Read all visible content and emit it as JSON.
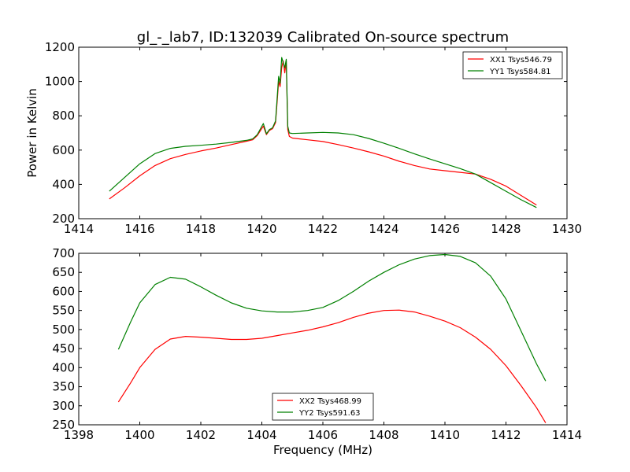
{
  "figure": {
    "title": "gl_-_lab7, ID:132039 Calibrated On-source spectrum",
    "colors": {
      "red": "#ff0000",
      "green": "#008000"
    }
  },
  "chart_data": [
    {
      "type": "line",
      "ylabel": "Power in Kelvin",
      "xlabel": "",
      "xlim": [
        1414,
        1430
      ],
      "ylim": [
        200,
        1200
      ],
      "xticks": [
        1414,
        1416,
        1418,
        1420,
        1422,
        1424,
        1426,
        1428,
        1430
      ],
      "yticks": [
        200,
        400,
        600,
        800,
        1000,
        1200
      ],
      "legend": "top-right",
      "series": [
        {
          "name": "XX1 Tsys546.79",
          "color": "#ff0000",
          "x": [
            1415,
            1415.5,
            1416,
            1416.5,
            1417,
            1417.5,
            1418,
            1418.5,
            1419,
            1419.5,
            1419.7,
            1419.85,
            1420.05,
            1420.15,
            1420.25,
            1420.35,
            1420.45,
            1420.5,
            1420.55,
            1420.6,
            1420.65,
            1420.7,
            1420.75,
            1420.8,
            1420.85,
            1420.9,
            1421,
            1421.5,
            1422,
            1422.5,
            1423,
            1423.5,
            1424,
            1424.5,
            1425,
            1425.5,
            1426,
            1426.5,
            1427,
            1427.5,
            1428,
            1428.5,
            1429
          ],
          "values": [
            315,
            380,
            450,
            510,
            550,
            575,
            595,
            612,
            632,
            652,
            660,
            685,
            740,
            690,
            715,
            725,
            760,
            880,
            1000,
            970,
            1080,
            1120,
            1050,
            1120,
            720,
            680,
            670,
            660,
            650,
            632,
            612,
            590,
            565,
            535,
            510,
            490,
            480,
            470,
            460,
            430,
            390,
            335,
            280
          ]
        },
        {
          "name": "YY1 Tsys584.81",
          "color": "#008000",
          "x": [
            1415,
            1415.5,
            1416,
            1416.5,
            1417,
            1417.5,
            1418,
            1418.5,
            1419,
            1419.5,
            1419.7,
            1419.85,
            1420.05,
            1420.15,
            1420.25,
            1420.35,
            1420.45,
            1420.5,
            1420.55,
            1420.6,
            1420.65,
            1420.7,
            1420.75,
            1420.8,
            1420.85,
            1420.9,
            1421,
            1421.5,
            1422,
            1422.5,
            1423,
            1423.5,
            1424,
            1424.5,
            1425,
            1425.5,
            1426,
            1426.5,
            1427,
            1427.5,
            1428,
            1428.5,
            1429
          ],
          "values": [
            360,
            440,
            520,
            580,
            610,
            622,
            628,
            635,
            645,
            657,
            665,
            690,
            755,
            695,
            720,
            730,
            770,
            900,
            1030,
            990,
            1140,
            1110,
            1080,
            1130,
            740,
            700,
            697,
            700,
            703,
            700,
            690,
            668,
            640,
            610,
            578,
            548,
            520,
            492,
            460,
            410,
            360,
            310,
            265
          ]
        }
      ]
    },
    {
      "type": "line",
      "ylabel": "",
      "xlabel": "Frequency (MHz)",
      "xlim": [
        1398,
        1414
      ],
      "ylim": [
        250,
        700
      ],
      "xticks": [
        1398,
        1400,
        1402,
        1404,
        1406,
        1408,
        1410,
        1412,
        1414
      ],
      "yticks": [
        250,
        300,
        350,
        400,
        450,
        500,
        550,
        600,
        650,
        700
      ],
      "legend": "bottom-center",
      "series": [
        {
          "name": "XX2 Tsys468.99",
          "color": "#ff0000",
          "x": [
            1399.3,
            1399.7,
            1400,
            1400.5,
            1401,
            1401.5,
            1402,
            1402.5,
            1403,
            1403.5,
            1404,
            1404.5,
            1405,
            1405.5,
            1406,
            1406.5,
            1407,
            1407.5,
            1408,
            1408.5,
            1409,
            1409.5,
            1410,
            1410.5,
            1411,
            1411.5,
            1412,
            1412.5,
            1413,
            1413.3
          ],
          "values": [
            310,
            360,
            400,
            448,
            475,
            482,
            480,
            477,
            474,
            474,
            477,
            484,
            491,
            498,
            507,
            518,
            532,
            543,
            550,
            551,
            546,
            535,
            522,
            505,
            480,
            448,
            405,
            352,
            295,
            255
          ]
        },
        {
          "name": "YY2 Tsys591.63",
          "color": "#008000",
          "x": [
            1399.3,
            1399.7,
            1400,
            1400.5,
            1401,
            1401.5,
            1402,
            1402.5,
            1403,
            1403.5,
            1404,
            1404.5,
            1405,
            1405.5,
            1406,
            1406.5,
            1407,
            1407.5,
            1408,
            1408.5,
            1409,
            1409.5,
            1410,
            1410.5,
            1411,
            1411.5,
            1412,
            1412.5,
            1413,
            1413.3
          ],
          "values": [
            448,
            520,
            570,
            618,
            637,
            632,
            612,
            590,
            570,
            556,
            549,
            546,
            546,
            550,
            558,
            576,
            600,
            627,
            650,
            670,
            685,
            694,
            697,
            692,
            675,
            640,
            580,
            495,
            410,
            365
          ]
        }
      ]
    }
  ]
}
